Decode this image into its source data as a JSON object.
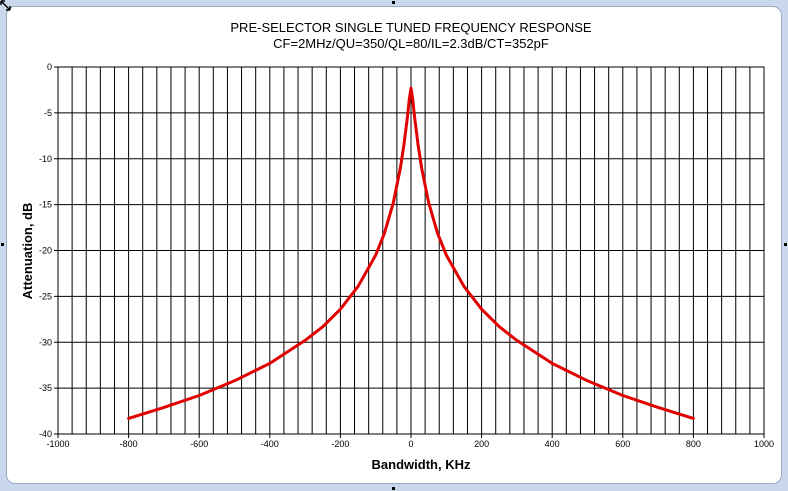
{
  "chart_data": {
    "type": "line",
    "title": "PRE-SELECTOR SINGLE TUNED FREQUENCY RESPONSE",
    "subtitle": "CF=2MHz/QU=350/QL=80/IL=2.3dB/CT=352pF",
    "xlabel": "Bandwidth, KHz",
    "ylabel": "Attenuation, dB",
    "xlim": [
      -1000,
      1000
    ],
    "ylim": [
      -40,
      0
    ],
    "x_ticks": [
      -1000,
      -800,
      -600,
      -400,
      -200,
      0,
      200,
      400,
      600,
      800,
      1000
    ],
    "y_ticks": [
      0,
      -5,
      -10,
      -15,
      -20,
      -25,
      -30,
      -35,
      -40
    ],
    "grid": true,
    "legend": "none",
    "series": [
      {
        "color": "#e00000",
        "x": [
          -800,
          -700,
          -600,
          -500,
          -400,
          -300,
          -250,
          -200,
          -150,
          -100,
          -75,
          -50,
          -30,
          -20,
          -10,
          -5,
          0,
          5,
          10,
          20,
          30,
          50,
          75,
          100,
          150,
          200,
          250,
          300,
          400,
          500,
          600,
          700,
          800
        ],
        "y": [
          -38.3,
          -37.1,
          -35.8,
          -34.2,
          -32.3,
          -29.8,
          -28.3,
          -26.4,
          -23.9,
          -20.5,
          -18.1,
          -14.8,
          -11.0,
          -8.5,
          -5.4,
          -3.6,
          -2.3,
          -3.6,
          -5.4,
          -8.5,
          -11.0,
          -14.8,
          -18.1,
          -20.5,
          -23.9,
          -26.4,
          -28.3,
          -29.8,
          -32.3,
          -34.2,
          -35.8,
          -37.1,
          -38.3
        ]
      }
    ]
  },
  "ui": {
    "frame_bg": "#c9d8ec",
    "plot_bg": "#ffffff",
    "grid_color": "#000000"
  }
}
